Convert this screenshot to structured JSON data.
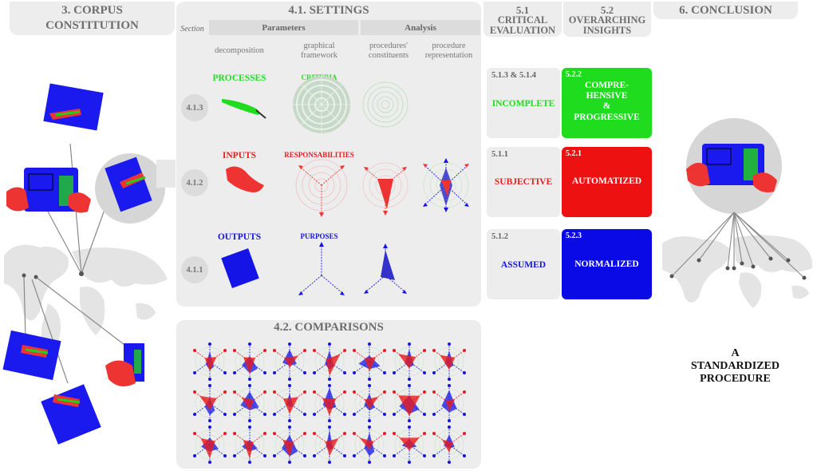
{
  "corpus": {
    "title_line1": "3. CORPUS",
    "title_line2": "CONSTITUTION"
  },
  "settings": {
    "title": "4.1. SETTINGS",
    "section_label": "Section",
    "parameters_label": "Parameters",
    "analysis_label": "Analysis",
    "columns": [
      "decomposition",
      "graphical framework",
      "procedures' constituents",
      "procedure representation"
    ],
    "rows": [
      {
        "section": "4.1.3",
        "label": "PROCESSES",
        "framework": "CRITERIA",
        "color": "#1fdc1f"
      },
      {
        "section": "4.1.2",
        "label": "INPUTS",
        "framework": "RESPONSABILITIES",
        "color": "#e81c1c"
      },
      {
        "section": "4.1.1",
        "label": "OUTPUTS",
        "framework": "PURPOSES",
        "color": "#1414e6"
      }
    ]
  },
  "comparisons": {
    "title": "4.2. COMPARISONS"
  },
  "critical": {
    "title_line1": "5.1",
    "title_line2": "CRITICAL",
    "title_line3": "EVALUATION",
    "items": [
      {
        "num": "5.1.3 & 5.1.4",
        "label": "INCOMPLETE",
        "color": "#1fdc1f"
      },
      {
        "num": "5.1.1",
        "label": "SUBJECTIVE",
        "color": "#e81c1c"
      },
      {
        "num": "5.1.2",
        "label": "ASSUMED",
        "color": "#1414e6"
      }
    ]
  },
  "insights": {
    "title_line1": "5.2",
    "title_line2": "OVERARCHING",
    "title_line3": "INSIGHTS",
    "items": [
      {
        "num": "5.2.2",
        "line1": "COMPRE-",
        "line2": "HENSIVE",
        "line3": "&",
        "line4": "PROGRESSIVE",
        "color": "#1fdc1f"
      },
      {
        "num": "5.2.1",
        "line1": "AUTOMATIZED",
        "color": "#ee1111"
      },
      {
        "num": "5.2.3",
        "line1": "NORMALIZED",
        "color": "#0a0ae6"
      }
    ]
  },
  "conclusion": {
    "title": "6. CONCLUSION",
    "result_line1": "A",
    "result_line2": "STANDARDIZED",
    "result_line3": "PROCEDURE"
  },
  "colors": {
    "green": "#1fdc1f",
    "red": "#e81c1c",
    "blue": "#1414e6",
    "panel": "#ededed",
    "header_text": "#6e6e6e"
  }
}
